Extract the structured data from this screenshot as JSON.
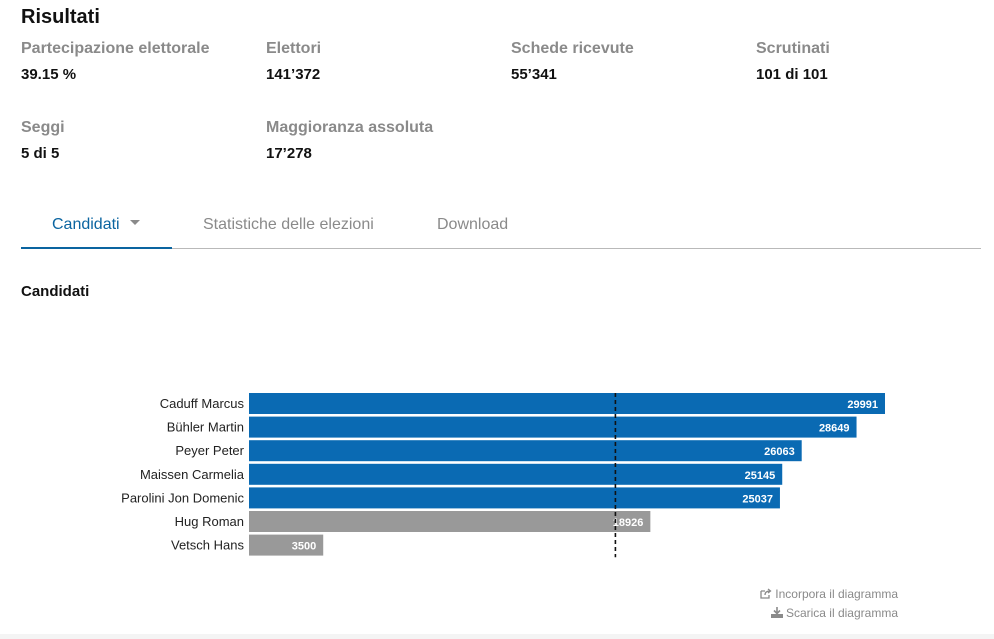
{
  "page": {
    "title": "Risultati"
  },
  "stats": [
    {
      "label": "Partecipazione elettorale",
      "value": "39.15 %"
    },
    {
      "label": "Elettori",
      "value": "141’372"
    },
    {
      "label": "Schede ricevute",
      "value": "55’341"
    },
    {
      "label": "Scrutinati",
      "value": "101 di 101"
    },
    {
      "label": "Seggi",
      "value": "5 di 5"
    },
    {
      "label": "Maggioranza assoluta",
      "value": "17’278"
    }
  ],
  "tabs": [
    {
      "label": "Candidati",
      "active": true
    },
    {
      "label": "Statistiche delle elezioni",
      "active": false
    },
    {
      "label": "Download",
      "active": false
    }
  ],
  "section": {
    "title": "Candidati"
  },
  "chart_data": {
    "type": "bar",
    "orientation": "horizontal",
    "categories": [
      "Caduff Marcus",
      "Bühler Martin",
      "Peyer Peter",
      "Maissen Carmelia",
      "Parolini Jon Domenic",
      "Hug Roman",
      "Vetsch Hans"
    ],
    "values": [
      29991,
      28649,
      26063,
      25145,
      25037,
      18926,
      3500
    ],
    "elected": [
      true,
      true,
      true,
      true,
      true,
      false,
      false
    ],
    "threshold": 17278,
    "xlim": [
      0,
      29991
    ],
    "colors": {
      "elected": "#0a6ab3",
      "not_elected": "#999999",
      "threshold": "#111111"
    }
  },
  "chart_actions": {
    "embed": "Incorpora il diagramma",
    "download": "Scarica il diagramma",
    "embed_icon": "share-icon",
    "download_icon": "download-icon"
  }
}
